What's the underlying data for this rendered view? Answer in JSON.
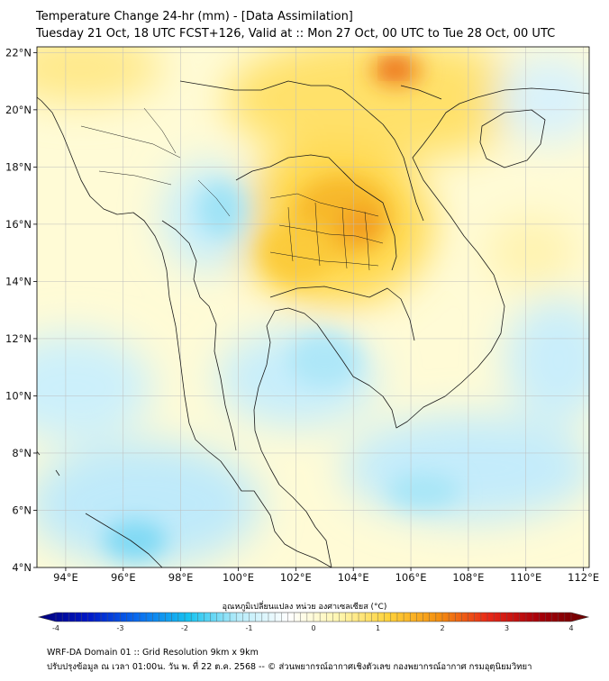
{
  "header": {
    "title": "Temperature Change 24-hr (mm) - [Data Assimilation]",
    "subtitle": "Tuesday 21 Oct, 18 UTC FCST+126, Valid at :: Mon 27 Oct, 00 UTC to Tue 28 Oct, 00 UTC"
  },
  "map": {
    "lat_labels": [
      "22°N",
      "20°N",
      "18°N",
      "16°N",
      "14°N",
      "12°N",
      "10°N",
      "8°N",
      "6°N",
      "4°N"
    ],
    "lon_labels": [
      "94°E",
      "96°E",
      "98°E",
      "100°E",
      "102°E",
      "104°E",
      "106°E",
      "108°E",
      "110°E",
      "112°E"
    ],
    "lat_range": [
      4,
      22
    ],
    "lon_range": [
      93,
      112.2
    ],
    "anomalies": [
      {
        "name": "north-vietnam-hotspot",
        "lon": 105.6,
        "lat": 21.4,
        "value": 2.6
      },
      {
        "name": "northeast-thailand-core",
        "lon": 104.1,
        "lat": 16.5,
        "value": 2.0
      },
      {
        "name": "central-thailand-warm",
        "lon": 102.5,
        "lat": 15.2,
        "value": 1.6
      },
      {
        "name": "north-laos-warm",
        "lon": 103.5,
        "lat": 20.5,
        "value": 1.4
      },
      {
        "name": "gulf-thailand-cool",
        "lon": 102.0,
        "lat": 10.5,
        "value": -0.8
      },
      {
        "name": "andaman-sea-cool",
        "lon": 96.0,
        "lat": 11.0,
        "value": -0.8
      },
      {
        "name": "west-myanmar-cool",
        "lon": 98.0,
        "lat": 15.0,
        "value": -0.9
      },
      {
        "name": "sumatra-cool",
        "lon": 96.5,
        "lat": 5.5,
        "value": -1.2
      },
      {
        "name": "south-china-sea-cool",
        "lon": 108.5,
        "lat": 7.0,
        "value": -0.9
      },
      {
        "name": "east-sea-cool",
        "lon": 111.0,
        "lat": 11.5,
        "value": -0.7
      }
    ]
  },
  "colorbar": {
    "title": "อุณหภูมิเปลี่ยนแปลง หน่วย องศาเซลเซียส (°C)",
    "ticks": [
      "-4",
      "-3",
      "-2",
      "-1",
      "0",
      "1",
      "2",
      "3",
      "4"
    ],
    "min": -4,
    "max": 4,
    "colors": [
      "#00007a",
      "#0018c8",
      "#0a6ef0",
      "#17c3f0",
      "#b8ecfa",
      "#ffffff",
      "#fff6b0",
      "#ffd23a",
      "#f49010",
      "#e82818",
      "#a8000a",
      "#6a0000"
    ]
  },
  "footer": {
    "line1": "WRF-DA Domain 01 :: Grid Resolution 9km x 9km",
    "line2": "ปรับปรุงข้อมูล ณ เวลา 01:00น. วัน พ. ที่ 22 ต.ค. 2568 -- © ส่วนพยากรณ์อากาศเชิงตัวเลข กองพยากรณ์อากาศ กรมอุตุนิยมวิทยา"
  }
}
